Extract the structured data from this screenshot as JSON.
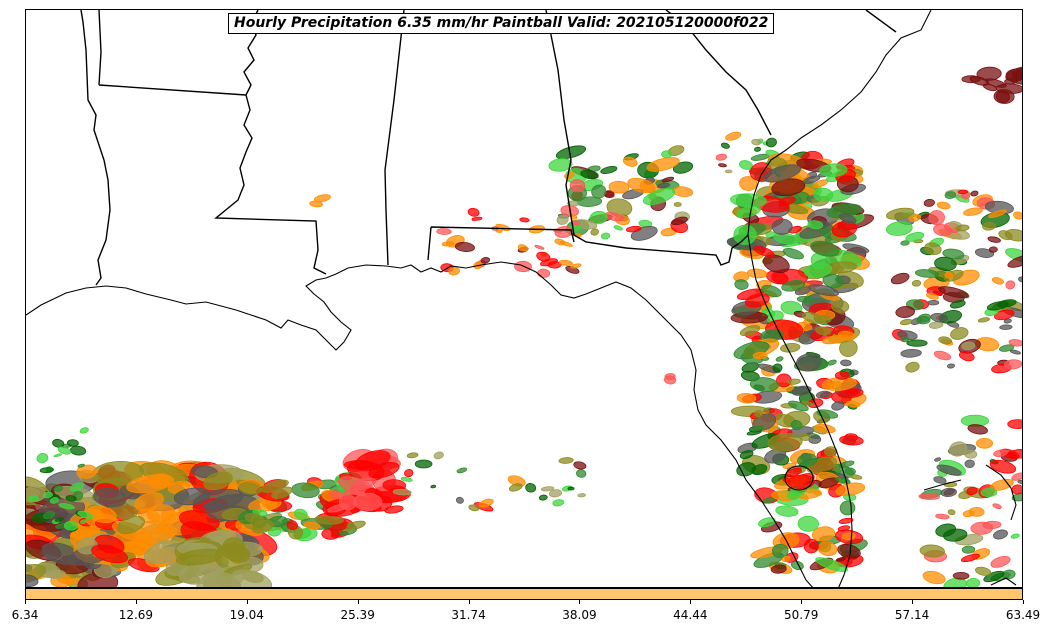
{
  "map": {
    "title": "Hourly Precipitation 6.35 mm/hr Paintball Valid: 202105120000f022",
    "region": "U.S. Gulf Coast and Florida",
    "threshold_mm_per_hr": 6.35,
    "valid_time": "202105120000",
    "forecast_hour": "f022",
    "background_color": "#ffffff",
    "boundary_color": "#000000"
  },
  "colorbar": {
    "color": "#ffc66e",
    "ticks": [
      "6.34",
      "12.69",
      "19.04",
      "25.39",
      "31.74",
      "38.09",
      "44.44",
      "50.79",
      "57.14",
      "63.49"
    ]
  },
  "member_colors": [
    "#7a1010",
    "#2f8a2f",
    "#8b8b1e",
    "#ff8c00",
    "#ff0000",
    "#3cd63c",
    "#555555",
    "#ff5555",
    "#006400",
    "#a0a060"
  ]
}
